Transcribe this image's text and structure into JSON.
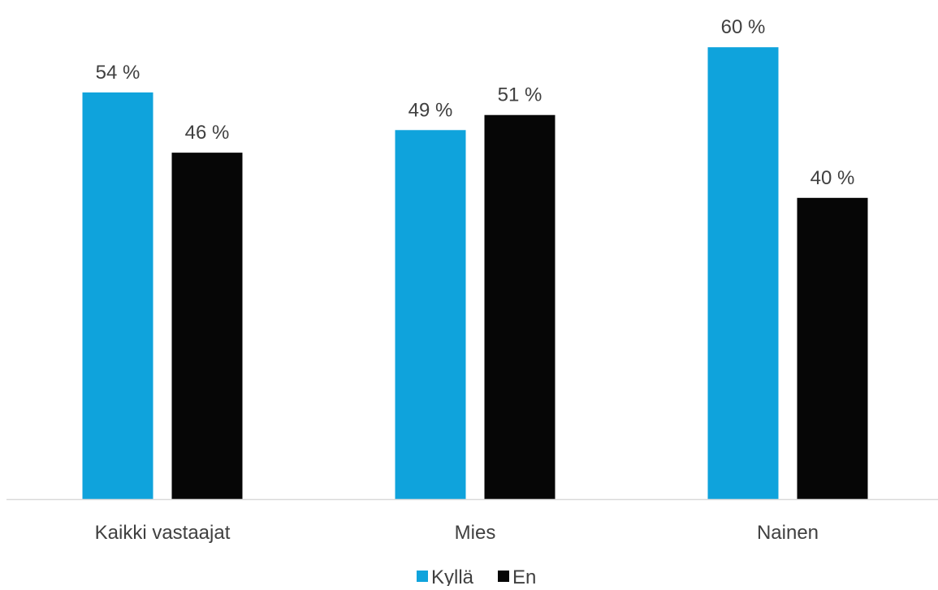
{
  "chart_data": {
    "type": "bar",
    "title": "",
    "xlabel": "",
    "ylabel": "",
    "ylim": [
      0,
      63
    ],
    "grid": false,
    "legend_position": "bottom",
    "categories": [
      "Kaikki vastaajat",
      "Mies",
      "Nainen"
    ],
    "series": [
      {
        "name": "Kyllä",
        "color": "#0fa3dc",
        "values": [
          54,
          49,
          60
        ],
        "labels": [
          "54 %",
          "49 %",
          "60 %"
        ]
      },
      {
        "name": "En",
        "color": "#060606",
        "values": [
          46,
          51,
          40
        ],
        "labels": [
          "46 %",
          "51 %",
          "40 %"
        ]
      }
    ]
  },
  "colors": {
    "axis": "#d9d9d9",
    "text": "#404040"
  }
}
